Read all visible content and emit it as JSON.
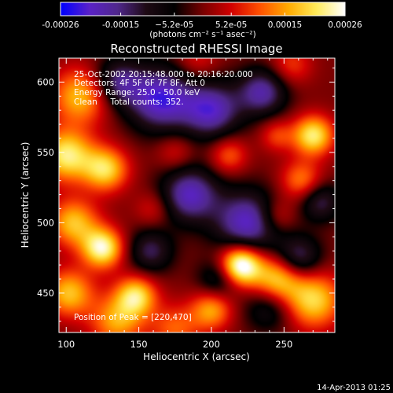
{
  "chart_data": {
    "type": "heatmap",
    "title": "Reconstructed RHESSI Image",
    "xlabel": "Heliocentric X (arcsec)",
    "ylabel": "Heliocentric Y (arcsec)",
    "xlim": [
      95,
      285
    ],
    "ylim": [
      422,
      617
    ],
    "x_ticks": [
      100,
      150,
      200,
      250
    ],
    "y_ticks": [
      450,
      500,
      550,
      600
    ],
    "x_tick_labels": [
      "100",
      "150",
      "200",
      "250"
    ],
    "y_tick_labels": [
      "450",
      "500",
      "550",
      "600"
    ],
    "colorbar": {
      "min": -0.00026,
      "max": 0.00026,
      "ticks": [
        -0.00026,
        -0.00015,
        -5.2e-05,
        5.2e-05,
        0.00015,
        0.00026
      ],
      "tick_labels": [
        "-0.00026",
        "-0.00015",
        "−5.2e-05",
        "5.2e-05",
        "0.00015",
        "0.00026"
      ],
      "unit_label": "(photons cm⁻² s⁻¹ asec⁻²)",
      "colors": [
        "#0000ff",
        "#5a22c8",
        "#50288c",
        "#1e0a14",
        "#000000",
        "#780000",
        "#d20000",
        "#ff5000",
        "#ffaa00",
        "#ffeb5a",
        "#ffffff"
      ]
    },
    "peak": [
      220,
      470
    ],
    "blobs": [
      {
        "x": 165,
        "y": 588,
        "s": 16,
        "a": -1.0
      },
      {
        "x": 200,
        "y": 580,
        "s": 14,
        "a": -0.9
      },
      {
        "x": 135,
        "y": 600,
        "s": 12,
        "a": -0.7
      },
      {
        "x": 235,
        "y": 593,
        "s": 12,
        "a": -0.8
      },
      {
        "x": 185,
        "y": 520,
        "s": 14,
        "a": -0.9
      },
      {
        "x": 225,
        "y": 500,
        "s": 16,
        "a": -0.95
      },
      {
        "x": 260,
        "y": 475,
        "s": 11,
        "a": -0.7
      },
      {
        "x": 158,
        "y": 480,
        "s": 11,
        "a": -0.6
      },
      {
        "x": 205,
        "y": 460,
        "s": 10,
        "a": -0.5
      },
      {
        "x": 275,
        "y": 515,
        "s": 10,
        "a": -0.6
      },
      {
        "x": 240,
        "y": 440,
        "s": 12,
        "a": -0.5
      },
      {
        "x": 110,
        "y": 590,
        "s": 14,
        "a": 0.8
      },
      {
        "x": 100,
        "y": 548,
        "s": 13,
        "a": 1.0
      },
      {
        "x": 127,
        "y": 538,
        "s": 11,
        "a": 0.9
      },
      {
        "x": 105,
        "y": 500,
        "s": 12,
        "a": 0.8
      },
      {
        "x": 125,
        "y": 482,
        "s": 10,
        "a": 1.1
      },
      {
        "x": 102,
        "y": 450,
        "s": 12,
        "a": 0.8
      },
      {
        "x": 148,
        "y": 448,
        "s": 10,
        "a": 0.9
      },
      {
        "x": 135,
        "y": 430,
        "s": 13,
        "a": 0.7
      },
      {
        "x": 220,
        "y": 470,
        "s": 10,
        "a": 1.4
      },
      {
        "x": 200,
        "y": 438,
        "s": 10,
        "a": 0.7
      },
      {
        "x": 245,
        "y": 460,
        "s": 12,
        "a": 0.9
      },
      {
        "x": 270,
        "y": 445,
        "s": 14,
        "a": 0.9
      },
      {
        "x": 270,
        "y": 562,
        "s": 10,
        "a": 1.0
      },
      {
        "x": 262,
        "y": 530,
        "s": 10,
        "a": 0.6
      },
      {
        "x": 212,
        "y": 548,
        "s": 9,
        "a": 0.5
      },
      {
        "x": 245,
        "y": 562,
        "s": 8,
        "a": 0.4
      },
      {
        "x": 175,
        "y": 550,
        "s": 9,
        "a": 0.3
      },
      {
        "x": 160,
        "y": 510,
        "s": 9,
        "a": 0.3
      },
      {
        "x": 245,
        "y": 505,
        "s": 9,
        "a": 0.4
      },
      {
        "x": 190,
        "y": 615,
        "s": 10,
        "a": 0.3
      },
      {
        "x": 255,
        "y": 612,
        "s": 10,
        "a": 0.4
      },
      {
        "x": 175,
        "y": 425,
        "s": 12,
        "a": 0.5
      }
    ],
    "annotations": {
      "time_range": "25-Oct-2002 20:15:48.000 to 20:16:20.000",
      "detectors": "Detectors: 4F 5F 6F 7F 8F, Att 0",
      "energy": "Energy Range: 25.0 - 50.0 keV",
      "clean": "Clean     Total counts: 352.",
      "peak_label": "Position of Peak = [220,470]"
    },
    "footer_date": "14-Apr-2013 01:25"
  }
}
